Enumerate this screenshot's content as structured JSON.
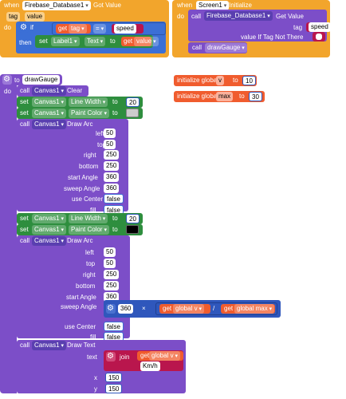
{
  "colors": {
    "event": "#f2a52c",
    "procedure": "#7c4ec8",
    "component": "#5a3fb0",
    "setter": "#2e8e3e",
    "variable": "#f05c2e",
    "math": "#2f57bc",
    "logic": "#3b6fd6",
    "text": "#b9164d"
  },
  "got_value": {
    "when": "when",
    "component": "Firebase_Database1",
    "event": "Got Value",
    "param1": "tag",
    "param2": "value",
    "do": "do",
    "if": "if",
    "then": "then",
    "get": "get",
    "tag_var": "tag",
    "op": "=",
    "string": "speed",
    "set": "set",
    "label": "Label1",
    "prop": "Text",
    "to": "to",
    "value_var": "value"
  },
  "screen_init": {
    "when": "when",
    "component": "Screen1",
    "event": "Initialize",
    "do": "do",
    "call": "call",
    "db": "Firebase_Database1",
    "method": "Get Value",
    "tag_label": "tag",
    "tag_value": "speed",
    "default_label": "value If Tag Not There",
    "call2": "call",
    "proc": "drawGauge"
  },
  "globals": [
    {
      "init": "initialize global",
      "name": "v",
      "to": "to",
      "value": "10"
    },
    {
      "init": "initialize global",
      "name": "max",
      "to": "to",
      "value": "30"
    }
  ],
  "draw_gauge": {
    "to": "to",
    "name": "drawGauge",
    "do": "do",
    "call": "call",
    "set": "set",
    "to_word": "to",
    "canvas": "Canvas1",
    "clear": "Clear",
    "line_width": "Line Width",
    "paint_color": "Paint Color",
    "draw_arc": "Draw Arc",
    "draw_text": "Draw Text",
    "lw1": "20",
    "lw2": "20",
    "color1": "#cccccc",
    "color2": "#000000",
    "arc_labels": {
      "left": "left",
      "top": "top",
      "right": "right",
      "bottom": "bottom",
      "start": "start Angle",
      "sweep": "sweep Angle",
      "center": "use Center",
      "fill": "fill"
    },
    "arc1": {
      "left": "50",
      "top": "50",
      "right": "250",
      "bottom": "250",
      "start": "360",
      "sweep": "360",
      "center": "false",
      "fill": "false"
    },
    "arc2": {
      "left": "50",
      "top": "50",
      "right": "250",
      "bottom": "250",
      "start": "360",
      "sweep_mult": "360",
      "times": "×",
      "div": "/",
      "get": "get",
      "gv": "global v",
      "gmax": "global max",
      "center": "false",
      "fill": "false"
    },
    "text_labels": {
      "text": "text",
      "join": "join",
      "x": "x",
      "y": "y"
    },
    "text": {
      "get": "get",
      "gv": "global v",
      "unit": "Km/h",
      "x": "150",
      "y": "150"
    }
  }
}
